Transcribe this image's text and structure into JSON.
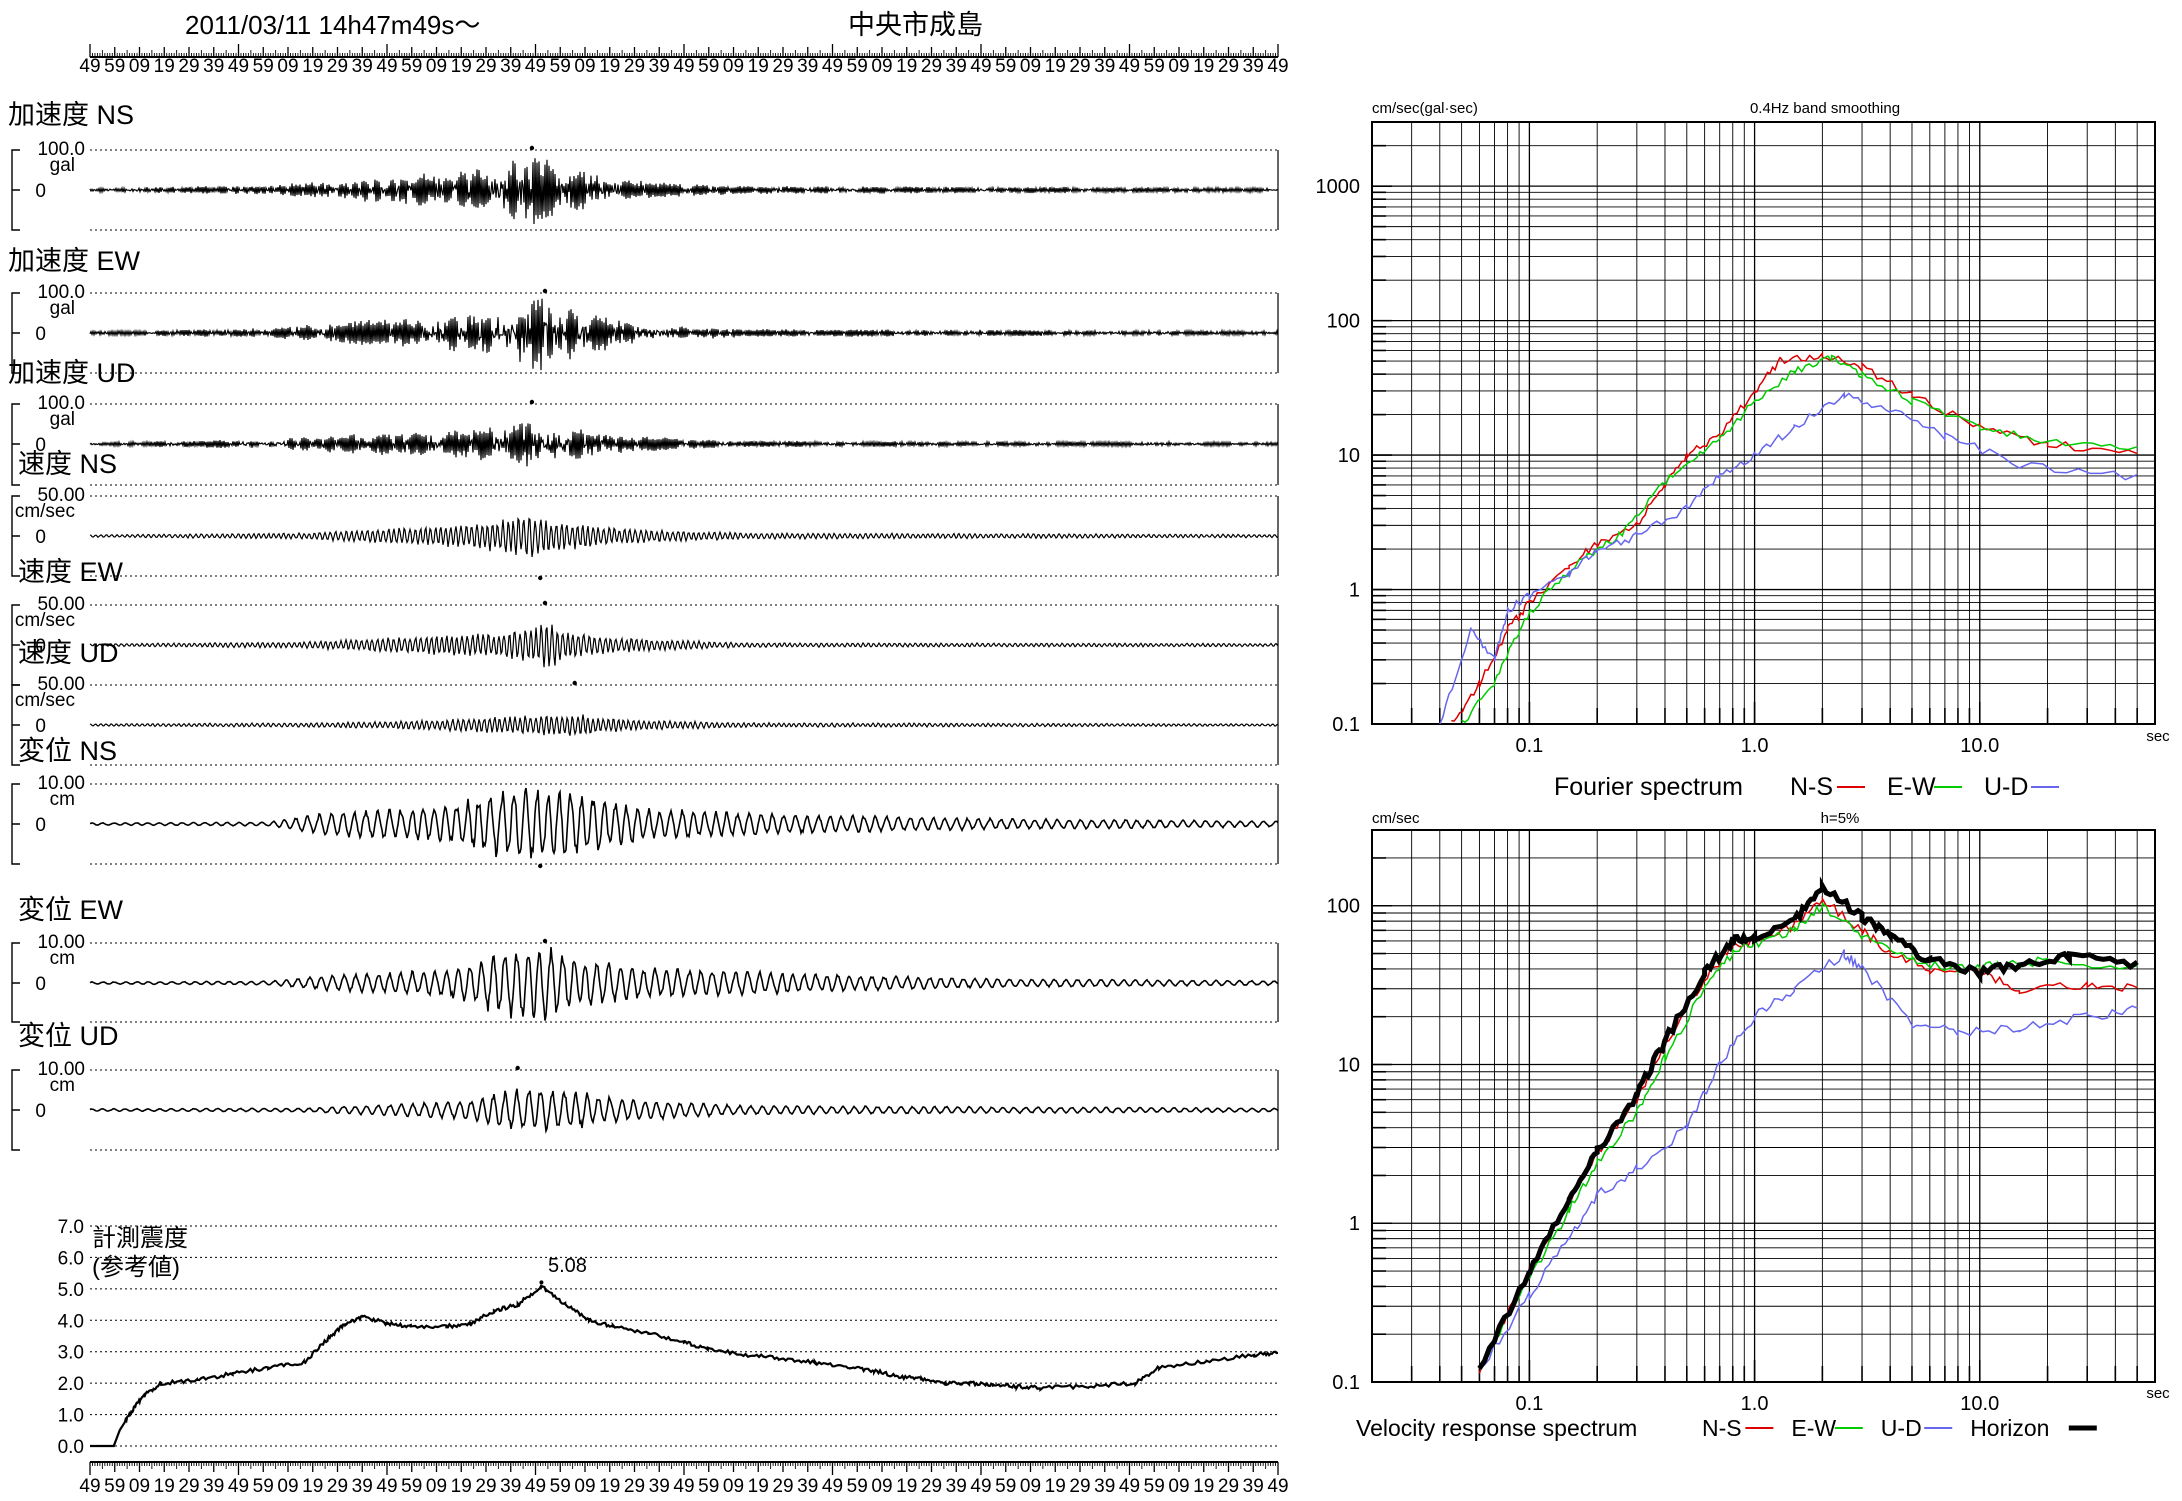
{
  "header": {
    "datetime": "2011/03/11  14h47m49s〜",
    "station": "中央市成島"
  },
  "time_ticks": [
    "49",
    "59",
    "09",
    "19",
    "29",
    "39",
    "49",
    "59",
    "09",
    "19",
    "29",
    "39",
    "49",
    "59",
    "09",
    "19",
    "29",
    "39",
    "49",
    "59",
    "09",
    "19",
    "29",
    "39",
    "49",
    "59",
    "09",
    "19",
    "29",
    "39",
    "49",
    "59",
    "09",
    "19",
    "29",
    "39",
    "49",
    "59",
    "09",
    "19",
    "29",
    "39",
    "49",
    "59",
    "09",
    "19",
    "29",
    "39",
    "49"
  ],
  "waveforms": [
    {
      "label": "加速度 NS",
      "scale": "100.0",
      "unit": "gal",
      "zero": "0",
      "envelope": [
        [
          0,
          0.05
        ],
        [
          0.15,
          0.12
        ],
        [
          0.22,
          0.3
        ],
        [
          0.3,
          0.45
        ],
        [
          0.35,
          0.7
        ],
        [
          0.37,
          1.0
        ],
        [
          0.4,
          0.6
        ],
        [
          0.45,
          0.25
        ],
        [
          0.55,
          0.1
        ],
        [
          1,
          0.06
        ]
      ],
      "peak_marker": [
        0.372,
        1
      ]
    },
    {
      "label": "加速度 EW",
      "scale": "100.0",
      "unit": "gal",
      "zero": "0",
      "envelope": [
        [
          0,
          0.05
        ],
        [
          0.15,
          0.12
        ],
        [
          0.22,
          0.3
        ],
        [
          0.3,
          0.45
        ],
        [
          0.35,
          0.7
        ],
        [
          0.38,
          1.0
        ],
        [
          0.41,
          0.6
        ],
        [
          0.46,
          0.25
        ],
        [
          0.55,
          0.1
        ],
        [
          1,
          0.06
        ]
      ],
      "peak_marker": [
        0.383,
        1
      ]
    },
    {
      "label": "加速度 UD",
      "scale": "100.0",
      "unit": "gal",
      "zero": "0",
      "envelope": [
        [
          0,
          0.05
        ],
        [
          0.15,
          0.12
        ],
        [
          0.22,
          0.25
        ],
        [
          0.3,
          0.35
        ],
        [
          0.35,
          0.5
        ],
        [
          0.37,
          0.6
        ],
        [
          0.41,
          0.45
        ],
        [
          0.46,
          0.2
        ],
        [
          0.55,
          0.08
        ],
        [
          1,
          0.05
        ]
      ],
      "peak_marker": [
        0.372,
        1
      ]
    },
    {
      "label": "速度 NS",
      "scale": "50.00",
      "unit": "cm/sec",
      "zero": "0",
      "envelope": [
        [
          0,
          0.03
        ],
        [
          0.18,
          0.08
        ],
        [
          0.25,
          0.2
        ],
        [
          0.33,
          0.35
        ],
        [
          0.37,
          0.6
        ],
        [
          0.39,
          0.4
        ],
        [
          0.45,
          0.2
        ],
        [
          0.55,
          0.08
        ],
        [
          1,
          0.04
        ]
      ],
      "peak_marker": [
        0.379,
        -1
      ]
    },
    {
      "label": "速度 EW",
      "scale": "50.00",
      "unit": "cm/sec",
      "zero": "0",
      "envelope": [
        [
          0,
          0.03
        ],
        [
          0.18,
          0.08
        ],
        [
          0.25,
          0.2
        ],
        [
          0.33,
          0.3
        ],
        [
          0.37,
          0.45
        ],
        [
          0.385,
          0.6
        ],
        [
          0.41,
          0.3
        ],
        [
          0.47,
          0.15
        ],
        [
          0.55,
          0.06
        ],
        [
          1,
          0.04
        ]
      ],
      "peak_marker": [
        0.383,
        1
      ]
    },
    {
      "label": "速度 UD",
      "scale": "50.00",
      "unit": "cm/sec",
      "zero": "0",
      "envelope": [
        [
          0,
          0.03
        ],
        [
          0.2,
          0.06
        ],
        [
          0.3,
          0.15
        ],
        [
          0.37,
          0.25
        ],
        [
          0.41,
          0.3
        ],
        [
          0.45,
          0.15
        ],
        [
          0.55,
          0.06
        ],
        [
          1,
          0.03
        ]
      ],
      "peak_marker": [
        0.408,
        1
      ]
    },
    {
      "label": "変位 NS",
      "scale": "10.00",
      "unit": "cm",
      "zero": "0",
      "envelope": [
        [
          0,
          0.03
        ],
        [
          0.15,
          0.05
        ],
        [
          0.2,
          0.3
        ],
        [
          0.3,
          0.5
        ],
        [
          0.35,
          0.9
        ],
        [
          0.38,
          1.0
        ],
        [
          0.42,
          0.8
        ],
        [
          0.47,
          0.4
        ],
        [
          0.6,
          0.25
        ],
        [
          0.75,
          0.15
        ],
        [
          1,
          0.08
        ]
      ],
      "peak_marker": [
        0.379,
        -1
      ]
    },
    {
      "label": "変位 EW",
      "scale": "10.00",
      "unit": "cm",
      "zero": "0",
      "envelope": [
        [
          0,
          0.03
        ],
        [
          0.15,
          0.05
        ],
        [
          0.2,
          0.2
        ],
        [
          0.3,
          0.35
        ],
        [
          0.35,
          0.9
        ],
        [
          0.383,
          1.0
        ],
        [
          0.42,
          0.6
        ],
        [
          0.47,
          0.4
        ],
        [
          0.6,
          0.25
        ],
        [
          0.75,
          0.12
        ],
        [
          1,
          0.06
        ]
      ],
      "peak_marker": [
        0.383,
        1
      ]
    },
    {
      "label": "変位 UD",
      "scale": "10.00",
      "unit": "cm",
      "zero": "0",
      "envelope": [
        [
          0,
          0.03
        ],
        [
          0.18,
          0.05
        ],
        [
          0.25,
          0.15
        ],
        [
          0.32,
          0.25
        ],
        [
          0.35,
          0.5
        ],
        [
          0.37,
          0.6
        ],
        [
          0.41,
          0.5
        ],
        [
          0.45,
          0.3
        ],
        [
          0.55,
          0.12
        ],
        [
          1,
          0.05
        ]
      ],
      "peak_marker": [
        0.36,
        1
      ]
    }
  ],
  "intensity": {
    "title_line1": "計測震度",
    "title_line2": "(参考値)",
    "peak_label": "5.08",
    "y_ticks": [
      "7.0",
      "6.0",
      "5.0",
      "4.0",
      "3.0",
      "2.0",
      "1.0",
      "0.0"
    ],
    "y_max": 7,
    "series": [
      [
        0.0,
        0
      ],
      [
        0.02,
        0
      ],
      [
        0.025,
        0.5
      ],
      [
        0.035,
        1.1
      ],
      [
        0.045,
        1.6
      ],
      [
        0.06,
        2.0
      ],
      [
        0.09,
        2.1
      ],
      [
        0.12,
        2.3
      ],
      [
        0.15,
        2.5
      ],
      [
        0.18,
        2.65
      ],
      [
        0.2,
        3.4
      ],
      [
        0.215,
        3.9
      ],
      [
        0.23,
        4.1
      ],
      [
        0.25,
        3.9
      ],
      [
        0.27,
        3.8
      ],
      [
        0.3,
        3.8
      ],
      [
        0.32,
        3.9
      ],
      [
        0.34,
        4.3
      ],
      [
        0.36,
        4.5
      ],
      [
        0.38,
        5.08
      ],
      [
        0.4,
        4.5
      ],
      [
        0.42,
        4.0
      ],
      [
        0.44,
        3.8
      ],
      [
        0.47,
        3.6
      ],
      [
        0.5,
        3.3
      ],
      [
        0.52,
        3.1
      ],
      [
        0.55,
        2.9
      ],
      [
        0.58,
        2.8
      ],
      [
        0.61,
        2.65
      ],
      [
        0.64,
        2.5
      ],
      [
        0.66,
        2.4
      ],
      [
        0.68,
        2.2
      ],
      [
        0.7,
        2.15
      ],
      [
        0.72,
        2.0
      ],
      [
        0.74,
        2.0
      ],
      [
        0.76,
        1.95
      ],
      [
        0.78,
        1.9
      ],
      [
        0.8,
        1.85
      ],
      [
        0.84,
        1.9
      ],
      [
        0.88,
        2.0
      ],
      [
        0.9,
        2.5
      ],
      [
        0.94,
        2.7
      ],
      [
        0.98,
        2.9
      ],
      [
        1.0,
        2.95
      ]
    ],
    "peak_x": 0.38
  },
  "chart_data": [
    {
      "type": "line",
      "title": "0.4Hz band smoothing",
      "ylabel": "cm/sec(gal·sec)",
      "xlabel": "sec",
      "x_scale": "log",
      "y_scale": "log",
      "xlim": [
        0.02,
        60
      ],
      "ylim": [
        0.1,
        3000
      ],
      "x_tick_labels": [
        "0.1",
        "1.0",
        "10.0"
      ],
      "y_tick_labels": [
        "0.1",
        "1",
        "10",
        "100",
        "1000"
      ],
      "legend_title": "Fourier spectrum",
      "series": [
        {
          "name": "N-S",
          "color": "#dd0000",
          "points": [
            [
              0.045,
              0.1
            ],
            [
              0.06,
              0.2
            ],
            [
              0.08,
              0.5
            ],
            [
              0.1,
              0.8
            ],
            [
              0.15,
              1.5
            ],
            [
              0.2,
              2.2
            ],
            [
              0.3,
              3
            ],
            [
              0.4,
              6
            ],
            [
              0.5,
              10
            ],
            [
              0.7,
              14
            ],
            [
              1.0,
              30
            ],
            [
              1.3,
              50
            ],
            [
              2.0,
              55
            ],
            [
              3,
              45
            ],
            [
              5,
              28
            ],
            [
              10,
              16
            ],
            [
              20,
              12
            ],
            [
              50,
              10.5
            ]
          ]
        },
        {
          "name": "E-W",
          "color": "#00cc00",
          "points": [
            [
              0.05,
              0.1
            ],
            [
              0.07,
              0.2
            ],
            [
              0.09,
              0.5
            ],
            [
              0.12,
              1.0
            ],
            [
              0.18,
              1.8
            ],
            [
              0.25,
              2.5
            ],
            [
              0.35,
              5
            ],
            [
              0.5,
              9
            ],
            [
              0.7,
              13
            ],
            [
              1.0,
              25
            ],
            [
              1.5,
              42
            ],
            [
              2.2,
              52
            ],
            [
              3,
              40
            ],
            [
              5,
              25
            ],
            [
              10,
              16
            ],
            [
              20,
              12.5
            ],
            [
              50,
              11.5
            ]
          ]
        },
        {
          "name": "U-D",
          "color": "#6666ee",
          "points": [
            [
              0.04,
              0.1
            ],
            [
              0.055,
              0.5
            ],
            [
              0.07,
              0.3
            ],
            [
              0.08,
              0.7
            ],
            [
              0.1,
              0.9
            ],
            [
              0.15,
              1.3
            ],
            [
              0.2,
              2
            ],
            [
              0.3,
              2.5
            ],
            [
              0.5,
              4
            ],
            [
              0.7,
              7
            ],
            [
              1.0,
              10
            ],
            [
              1.5,
              16
            ],
            [
              2.5,
              28
            ],
            [
              4,
              22
            ],
            [
              7,
              14
            ],
            [
              15,
              8.5
            ],
            [
              50,
              6.8
            ]
          ]
        }
      ]
    },
    {
      "type": "line",
      "title": "h=5%",
      "ylabel": "cm/sec",
      "xlabel": "sec",
      "x_scale": "log",
      "y_scale": "log",
      "xlim": [
        0.02,
        60
      ],
      "ylim": [
        0.1,
        300
      ],
      "x_tick_labels": [
        "0.1",
        "1.0",
        "10.0"
      ],
      "y_tick_labels": [
        "0.1",
        "1",
        "10",
        "100"
      ],
      "legend_title": "Velocity response spectrum",
      "series": [
        {
          "name": "N-S",
          "color": "#dd0000",
          "points": [
            [
              0.06,
              0.12
            ],
            [
              0.1,
              0.5
            ],
            [
              0.15,
              1.4
            ],
            [
              0.2,
              2.8
            ],
            [
              0.3,
              6
            ],
            [
              0.4,
              13
            ],
            [
              0.6,
              35
            ],
            [
              0.8,
              55
            ],
            [
              1.0,
              60
            ],
            [
              1.5,
              75
            ],
            [
              2.0,
              110
            ],
            [
              3,
              70
            ],
            [
              4,
              50
            ],
            [
              6,
              40
            ],
            [
              10,
              38
            ],
            [
              15,
              30
            ],
            [
              30,
              31
            ],
            [
              50,
              31
            ]
          ]
        },
        {
          "name": "E-W",
          "color": "#00cc00",
          "points": [
            [
              0.06,
              0.12
            ],
            [
              0.1,
              0.45
            ],
            [
              0.15,
              1.2
            ],
            [
              0.2,
              2.4
            ],
            [
              0.3,
              5
            ],
            [
              0.4,
              11
            ],
            [
              0.6,
              30
            ],
            [
              0.8,
              50
            ],
            [
              1.0,
              58
            ],
            [
              1.5,
              70
            ],
            [
              2.0,
              100
            ],
            [
              3,
              65
            ],
            [
              5,
              45
            ],
            [
              8,
              40
            ],
            [
              12,
              42
            ],
            [
              20,
              45
            ],
            [
              50,
              42
            ]
          ]
        },
        {
          "name": "U-D",
          "color": "#6666ee",
          "points": [
            [
              0.06,
              0.12
            ],
            [
              0.1,
              0.35
            ],
            [
              0.15,
              0.8
            ],
            [
              0.2,
              1.5
            ],
            [
              0.3,
              2.2
            ],
            [
              0.5,
              4
            ],
            [
              0.7,
              10
            ],
            [
              1.0,
              20
            ],
            [
              1.5,
              30
            ],
            [
              2.5,
              50
            ],
            [
              3,
              40
            ],
            [
              5,
              18
            ],
            [
              8,
              16
            ],
            [
              15,
              17
            ],
            [
              30,
              20
            ],
            [
              50,
              22
            ]
          ]
        },
        {
          "name": "Horizon",
          "color": "#000000",
          "points": [
            [
              0.06,
              0.12
            ],
            [
              0.1,
              0.5
            ],
            [
              0.15,
              1.4
            ],
            [
              0.2,
              2.8
            ],
            [
              0.3,
              6.5
            ],
            [
              0.4,
              14
            ],
            [
              0.6,
              38
            ],
            [
              0.8,
              60
            ],
            [
              1.0,
              62
            ],
            [
              1.5,
              80
            ],
            [
              2.0,
              130
            ],
            [
              3,
              85
            ],
            [
              4,
              65
            ],
            [
              6,
              45
            ],
            [
              10,
              38
            ],
            [
              15,
              42
            ],
            [
              25,
              48
            ],
            [
              50,
              42
            ]
          ]
        }
      ]
    }
  ]
}
